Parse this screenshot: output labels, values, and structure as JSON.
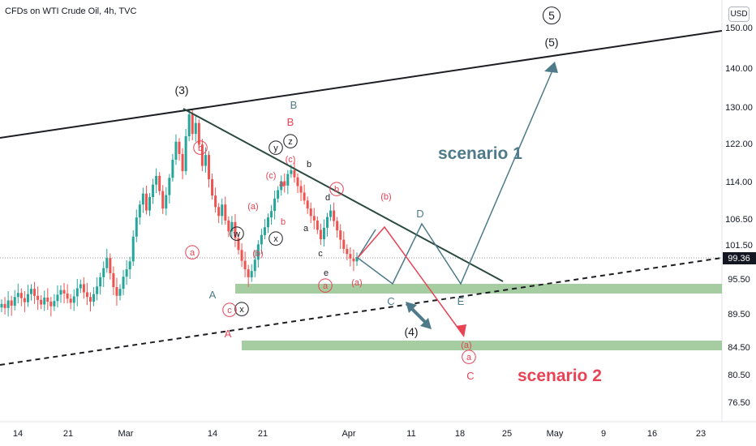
{
  "header": {
    "symbol_title": "CFDs on WTI Crude Oil, 4h, TVC",
    "currency": "USD"
  },
  "chart_data": {
    "type": "candlestick",
    "title": "CFDs on WTI Crude Oil, 4h, TVC",
    "y_ticks": [
      "150.00",
      "140.00",
      "130.00",
      "122.00",
      "114.00",
      "106.50",
      "101.50",
      "95.50",
      "89.50",
      "84.50",
      "80.50",
      "76.50"
    ],
    "x_ticks": [
      "14",
      "21",
      "Mar",
      "14",
      "21",
      "Apr",
      "11",
      "18",
      "25",
      "May",
      "9",
      "16",
      "23"
    ],
    "last_price": "99.36",
    "colors": {
      "up": "#26a69a",
      "down": "#ef5350",
      "blue_scenario": "#4e7a8a",
      "red_scenario": "#e84355",
      "zone": "#8fc18a"
    },
    "candle_closes": [
      91.2,
      90.5,
      91.8,
      90.9,
      92.4,
      93.1,
      92.2,
      91.5,
      92.9,
      93.8,
      92.6,
      91.9,
      91.1,
      92.3,
      91.6,
      90.8,
      91.7,
      92.8,
      93.6,
      93.0,
      92.1,
      91.4,
      92.5,
      93.9,
      94.6,
      93.2,
      92.4,
      91.6,
      92.9,
      94.2,
      95.8,
      97.4,
      99.2,
      96.5,
      94.1,
      92.6,
      93.8,
      95.9,
      97.2,
      98.6,
      103.1,
      106.8,
      109.4,
      111.6,
      108.2,
      110.9,
      113.4,
      115.2,
      112.1,
      108.6,
      111.3,
      114.8,
      118.6,
      122.4,
      119.8,
      116.2,
      123.6,
      128.4,
      124.1,
      126.5,
      121.8,
      117.3,
      119.6,
      114.5,
      111.2,
      108.9,
      107.1,
      109.4,
      106.2,
      104.1,
      105.9,
      102.8,
      100.6,
      98.7,
      97.2,
      95.8,
      96.9,
      98.9,
      101.6,
      103.4,
      104.9,
      106.8,
      108.1,
      110.6,
      112.3,
      114.1,
      113.2,
      115.6,
      116.4,
      114.9,
      113.1,
      111.8,
      110.2,
      108.6,
      107.1,
      106.2,
      104.4,
      102.6,
      104.8,
      106.9,
      108.2,
      106.1,
      104.3,
      102.5,
      100.8,
      99.9,
      99.1,
      98.6,
      99.36
    ],
    "wave_labels": {
      "primary": [
        "(3)",
        "(4)",
        "(5)",
        "5"
      ],
      "intermediate_blue": [
        "A",
        "B",
        "C",
        "D",
        "E"
      ],
      "intermediate_red": [
        "B",
        "A",
        "C"
      ],
      "sub_black": [
        "w",
        "x",
        "x",
        "y",
        "z",
        "a",
        "b",
        "c",
        "d",
        "e"
      ],
      "sub_red": [
        "a",
        "b",
        "(a)",
        "(b)",
        "(c)",
        "a",
        "b",
        "c",
        "x",
        "(a)",
        "(b)",
        "(c)",
        "a",
        "b",
        "(a)",
        "(b)",
        "(c)",
        "a",
        "c"
      ]
    },
    "annotations": [
      "scenario 1",
      "scenario 2"
    ]
  }
}
